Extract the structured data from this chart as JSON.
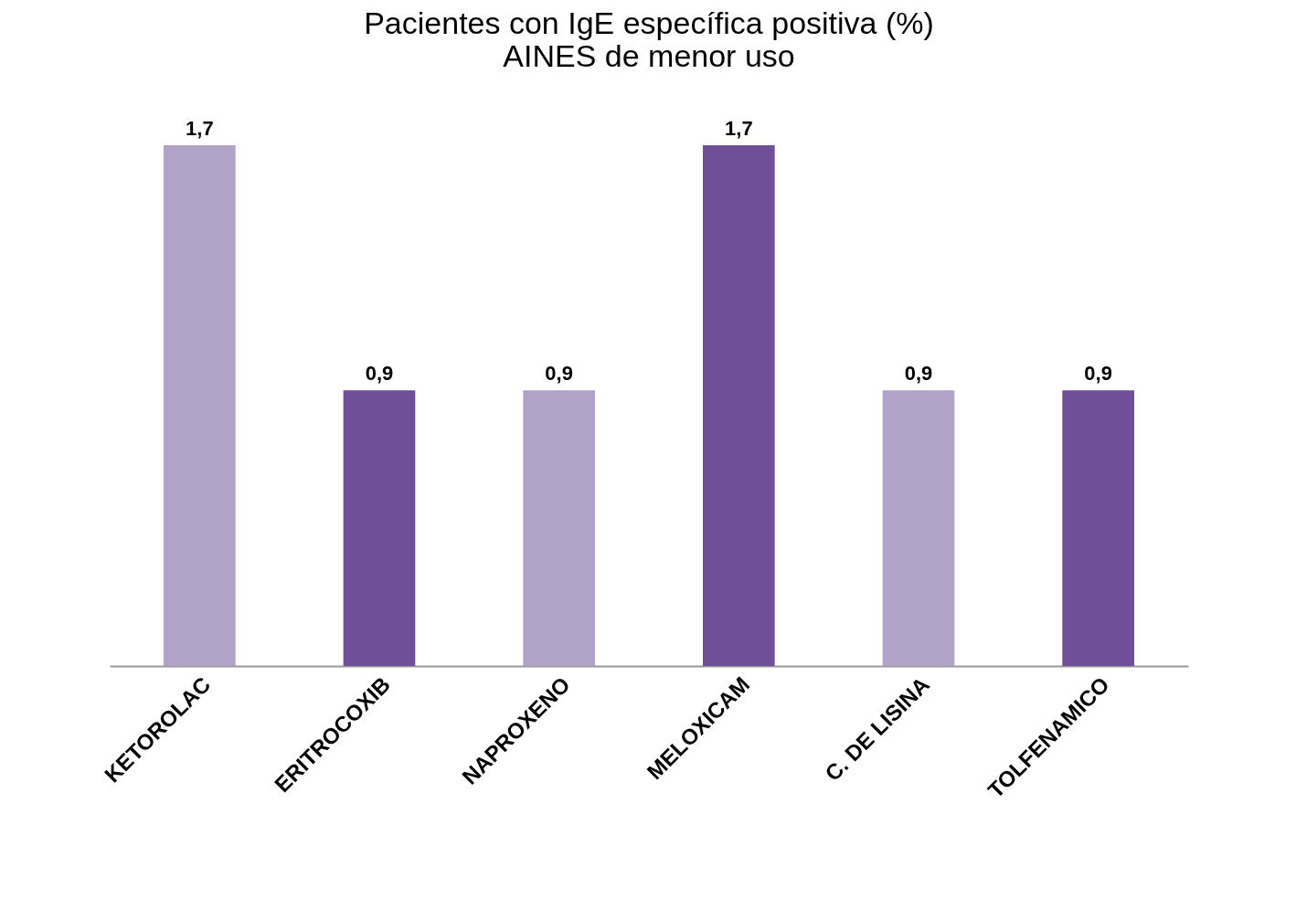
{
  "chart_data": {
    "type": "bar",
    "title": [
      "Pacientes con IgE específica positiva (%)",
      "AINES de menor uso"
    ],
    "categories": [
      "KETOROLAC",
      "ERITROCOXIB",
      "NAPROXENO",
      "MELOXICAM",
      "C. DE LISINA",
      "TOLFENAMICO"
    ],
    "values": [
      1.7,
      0.9,
      0.9,
      1.7,
      0.9,
      0.9
    ],
    "colors": [
      "#b1a2c8",
      "#6f4f98",
      "#b1a2c8",
      "#6f4f98",
      "#b1a2c8",
      "#6f4f98"
    ],
    "value_labels": [
      "1,7",
      "0,9",
      "0,9",
      "1,7",
      "0,9",
      "0,9"
    ]
  }
}
